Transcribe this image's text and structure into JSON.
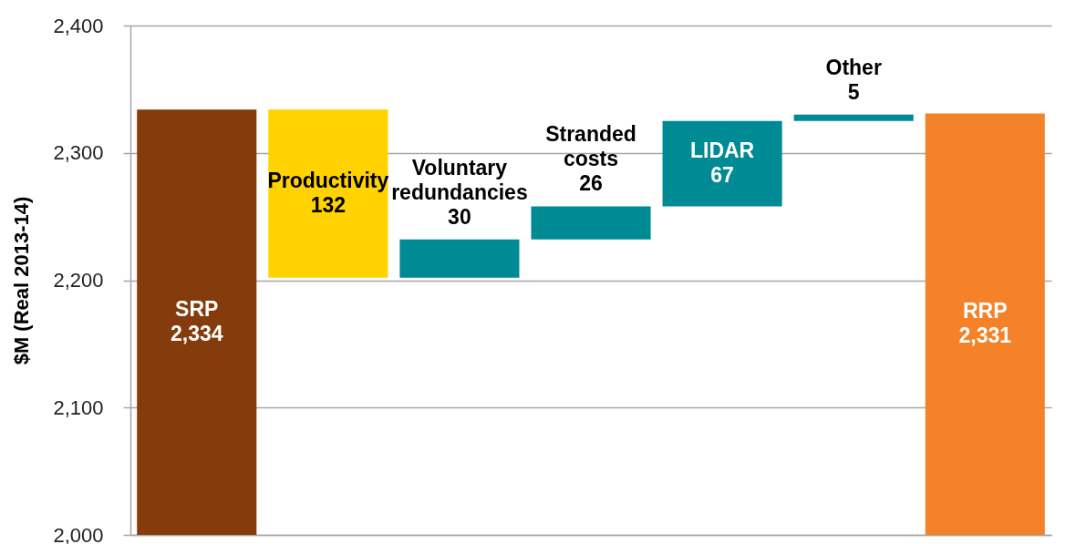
{
  "chart_data": {
    "type": "bar",
    "categories": [
      "SRP",
      "Productivity",
      "Voluntary redundancies",
      "Stranded costs",
      "LIDAR",
      "Other",
      "RRP"
    ],
    "values": [
      2334,
      132,
      30,
      26,
      67,
      5,
      2331
    ],
    "base": [
      null,
      2202,
      2202,
      2232,
      2258,
      2325,
      null
    ],
    "colors": [
      "#843c0c",
      "#ffd200",
      "#008b94",
      "#008b94",
      "#008b94",
      "#008b94",
      "#f58228"
    ],
    "value_labels": [
      "2,334",
      "132",
      "30",
      "26",
      "67",
      "5",
      "2,331"
    ],
    "ylabel": "$M (Real 2013-14)",
    "ylim": [
      2000,
      2400
    ],
    "yticks": [
      {
        "value": 2000,
        "label": "2,000"
      },
      {
        "value": 2100,
        "label": "2,100"
      },
      {
        "value": 2200,
        "label": "2,200"
      },
      {
        "value": 2300,
        "label": "2,300"
      },
      {
        "value": 2400,
        "label": "2,400"
      }
    ],
    "grid": "y",
    "tick_labels": "y"
  }
}
